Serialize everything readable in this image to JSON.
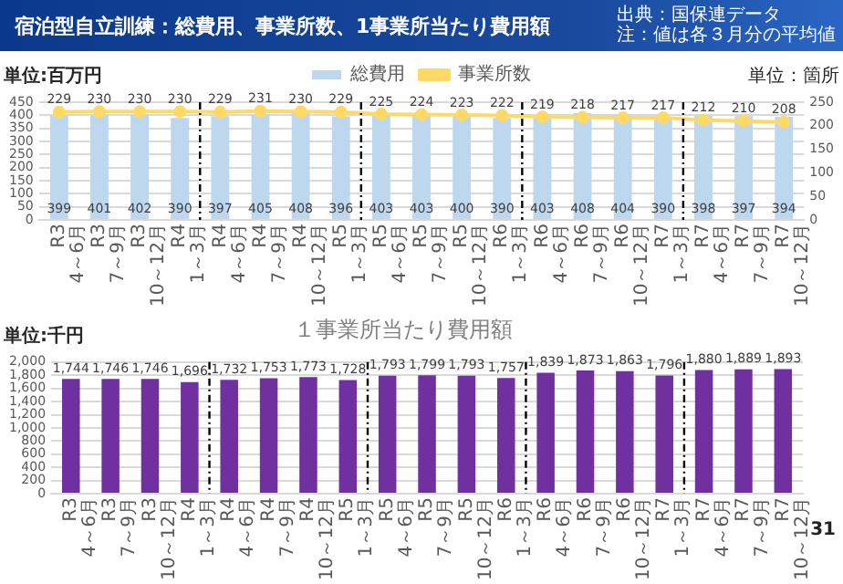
{
  "chart_data": [
    {
      "type": "bar",
      "title": "宿泊型自立訓練：総費用、事業所数、1事業所当たり費用額",
      "ylabel": "単位:百万円",
      "y2label": "単位：箇所",
      "annotations": [
        "出典：国保連データ",
        "注：値は各３月分の平均値"
      ],
      "categories": [
        "R3\n4～6月",
        "R3\n7～9月",
        "R3\n10～12月",
        "R4\n1～3月",
        "R4\n4～6月",
        "R4\n7～9月",
        "R4\n10～12月",
        "R5\n1～3月",
        "R5\n4～6月",
        "R5\n7～9月",
        "R5\n10～12月",
        "R6\n1～3月",
        "R6\n4～6月",
        "R6\n7～9月",
        "R6\n10～12月",
        "R7\n1～3月",
        "R7\n4～6月",
        "R7\n7～9月",
        "R7\n10～12月"
      ],
      "series": [
        {
          "name": "総費用",
          "color": "#bdd7ee",
          "values": [
            399,
            401,
            402,
            390,
            397,
            405,
            408,
            396,
            403,
            403,
            400,
            390,
            403,
            408,
            404,
            390,
            398,
            397,
            394
          ]
        },
        {
          "name": "事業所数",
          "type": "line",
          "axis": "y2",
          "color": "#ffd966",
          "values": [
            229,
            230,
            230,
            230,
            229,
            231,
            230,
            229,
            225,
            224,
            223,
            222,
            219,
            218,
            217,
            217,
            212,
            210,
            208
          ]
        }
      ],
      "ylim": [
        0,
        450
      ],
      "yticks": [
        0,
        50,
        100,
        150,
        200,
        250,
        300,
        350,
        400,
        450
      ],
      "y2lim": [
        0,
        250
      ],
      "y2ticks": [
        0,
        50,
        100,
        150,
        200,
        250
      ],
      "grid": "y",
      "legend": "top",
      "marker": "circle",
      "data_labels": true
    },
    {
      "type": "bar",
      "title": "１事業所当たり費用額",
      "ylabel": "単位:千円",
      "annotations": [
        "31"
      ],
      "categories": [
        "R3\n4～6月",
        "R3\n7～9月",
        "R3\n10～12月",
        "R4\n1～3月",
        "R4\n4～6月",
        "R4\n7～9月",
        "R4\n10～12月",
        "R5\n1～3月",
        "R5\n4～6月",
        "R5\n7～9月",
        "R5\n10～12月",
        "R6\n1～3月",
        "R6\n4～6月",
        "R6\n7～9月",
        "R6\n10～12月",
        "R7\n1～3月",
        "R7\n4～6月",
        "R7\n7～9月",
        "R7\n10～12月"
      ],
      "color": "#7030a0",
      "values": [
        1744,
        1746,
        1746,
        1696,
        1732,
        1753,
        1773,
        1728,
        1793,
        1799,
        1793,
        1757,
        1839,
        1873,
        1863,
        1796,
        1880,
        1889,
        1893
      ],
      "value_labels": [
        "1,744",
        "1,746",
        "1,746",
        "1,696",
        "1,732",
        "1,753",
        "1,773",
        "1,728",
        "1,793",
        "1,799",
        "1,793",
        "1,757",
        "1,839",
        "1,873",
        "1,863",
        "1,796",
        "1,880",
        "1,889",
        "1,893"
      ],
      "ylim": [
        0,
        2000
      ],
      "yticks": [
        0,
        {
          "value": 200,
          "label": "200"
        },
        {
          "value": 400,
          "label": "400"
        },
        {
          "value": 600,
          "label": "600"
        },
        {
          "value": 800,
          "label": "800"
        },
        {
          "value": 1000,
          "label": "1,000"
        },
        {
          "value": 1200,
          "label": "1,200"
        },
        {
          "value": 1400,
          "label": "1,400"
        },
        {
          "value": 1600,
          "label": "1,600"
        },
        {
          "value": 1800,
          "label": "1,800"
        },
        {
          "value": 2000,
          "label": "2,000"
        }
      ],
      "grid": "y"
    }
  ]
}
